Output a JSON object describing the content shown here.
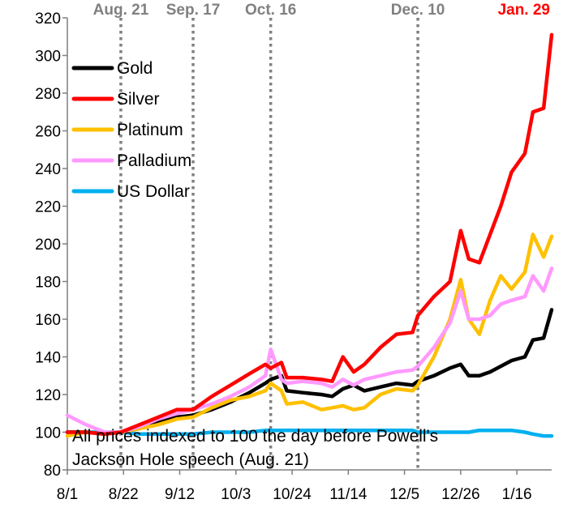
{
  "chart_data": {
    "type": "line",
    "title": "",
    "xlabel": "",
    "ylabel": "",
    "ylim": [
      80,
      320
    ],
    "yticks": [
      80,
      100,
      120,
      140,
      160,
      180,
      200,
      220,
      240,
      260,
      280,
      300,
      320
    ],
    "xlim": [
      "2025-08-01",
      "2026-01-29"
    ],
    "xticks": [
      {
        "date": "2025-08-01",
        "label": "8/1"
      },
      {
        "date": "2025-08-22",
        "label": "8/22"
      },
      {
        "date": "2025-09-12",
        "label": "9/12"
      },
      {
        "date": "2025-10-03",
        "label": "10/3"
      },
      {
        "date": "2025-10-24",
        "label": "10/24"
      },
      {
        "date": "2025-11-14",
        "label": "11/14"
      },
      {
        "date": "2025-12-05",
        "label": "12/5"
      },
      {
        "date": "2025-12-26",
        "label": "12/26"
      },
      {
        "date": "2026-01-16",
        "label": "1/16"
      }
    ],
    "grid": false,
    "legend_position": "top-left",
    "event_lines": [
      {
        "date": "2025-08-21",
        "label": "Aug. 21",
        "color": "#808080",
        "show_line": true
      },
      {
        "date": "2025-09-17",
        "label": "Sep. 17",
        "color": "#808080",
        "show_line": true
      },
      {
        "date": "2025-10-16",
        "label": "Oct. 16",
        "color": "#808080",
        "show_line": true
      },
      {
        "date": "2025-12-10",
        "label": "Dec. 10",
        "color": "#808080",
        "show_line": true
      },
      {
        "date": "2026-01-29",
        "label": "Jan. 29",
        "color": "#ff0000",
        "show_line": false
      }
    ],
    "annotation": {
      "lines": [
        "All prices indexed to 100 the day before Powell's",
        "Jackson Hole speech (Aug. 21)"
      ]
    },
    "series": [
      {
        "name": "Gold",
        "color": "#000000",
        "points": [
          [
            "2025-08-01",
            100
          ],
          [
            "2025-08-08",
            100
          ],
          [
            "2025-08-15",
            99
          ],
          [
            "2025-08-21",
            100
          ],
          [
            "2025-08-28",
            102
          ],
          [
            "2025-09-04",
            106
          ],
          [
            "2025-09-11",
            108
          ],
          [
            "2025-09-17",
            109
          ],
          [
            "2025-09-24",
            112
          ],
          [
            "2025-10-01",
            116
          ],
          [
            "2025-10-08",
            121
          ],
          [
            "2025-10-14",
            126
          ],
          [
            "2025-10-16",
            128
          ],
          [
            "2025-10-20",
            130
          ],
          [
            "2025-10-22",
            122
          ],
          [
            "2025-10-28",
            121
          ],
          [
            "2025-11-04",
            120
          ],
          [
            "2025-11-08",
            119
          ],
          [
            "2025-11-12",
            123
          ],
          [
            "2025-11-16",
            125
          ],
          [
            "2025-11-20",
            122
          ],
          [
            "2025-11-26",
            124
          ],
          [
            "2025-12-02",
            126
          ],
          [
            "2025-12-08",
            125
          ],
          [
            "2025-12-10",
            127
          ],
          [
            "2025-12-16",
            130
          ],
          [
            "2025-12-22",
            134
          ],
          [
            "2025-12-26",
            136
          ],
          [
            "2025-12-29",
            130
          ],
          [
            "2026-01-02",
            130
          ],
          [
            "2026-01-06",
            132
          ],
          [
            "2026-01-10",
            135
          ],
          [
            "2026-01-14",
            138
          ],
          [
            "2026-01-19",
            140
          ],
          [
            "2026-01-22",
            149
          ],
          [
            "2026-01-26",
            150
          ],
          [
            "2026-01-29",
            165
          ]
        ]
      },
      {
        "name": "Silver",
        "color": "#ff0000",
        "points": [
          [
            "2025-08-01",
            100
          ],
          [
            "2025-08-08",
            100
          ],
          [
            "2025-08-15",
            99
          ],
          [
            "2025-08-21",
            100
          ],
          [
            "2025-08-28",
            104
          ],
          [
            "2025-09-04",
            108
          ],
          [
            "2025-09-11",
            112
          ],
          [
            "2025-09-17",
            112
          ],
          [
            "2025-09-24",
            119
          ],
          [
            "2025-10-01",
            125
          ],
          [
            "2025-10-08",
            131
          ],
          [
            "2025-10-14",
            136
          ],
          [
            "2025-10-16",
            134
          ],
          [
            "2025-10-20",
            137
          ],
          [
            "2025-10-22",
            129
          ],
          [
            "2025-10-28",
            129
          ],
          [
            "2025-11-04",
            128
          ],
          [
            "2025-11-08",
            127
          ],
          [
            "2025-11-12",
            140
          ],
          [
            "2025-11-16",
            132
          ],
          [
            "2025-11-20",
            136
          ],
          [
            "2025-11-26",
            145
          ],
          [
            "2025-12-02",
            152
          ],
          [
            "2025-12-08",
            153
          ],
          [
            "2025-12-10",
            162
          ],
          [
            "2025-12-16",
            172
          ],
          [
            "2025-12-22",
            180
          ],
          [
            "2025-12-26",
            207
          ],
          [
            "2025-12-29",
            192
          ],
          [
            "2026-01-02",
            190
          ],
          [
            "2026-01-06",
            205
          ],
          [
            "2026-01-10",
            220
          ],
          [
            "2026-01-14",
            238
          ],
          [
            "2026-01-19",
            248
          ],
          [
            "2026-01-22",
            270
          ],
          [
            "2026-01-26",
            272
          ],
          [
            "2026-01-29",
            311
          ]
        ]
      },
      {
        "name": "Platinum",
        "color": "#ffc000",
        "points": [
          [
            "2025-08-01",
            98
          ],
          [
            "2025-08-08",
            100
          ],
          [
            "2025-08-15",
            99
          ],
          [
            "2025-08-21",
            100
          ],
          [
            "2025-08-28",
            102
          ],
          [
            "2025-09-04",
            104
          ],
          [
            "2025-09-11",
            107
          ],
          [
            "2025-09-17",
            108
          ],
          [
            "2025-09-24",
            113
          ],
          [
            "2025-10-01",
            117
          ],
          [
            "2025-10-08",
            119
          ],
          [
            "2025-10-14",
            122
          ],
          [
            "2025-10-16",
            126
          ],
          [
            "2025-10-20",
            122
          ],
          [
            "2025-10-22",
            115
          ],
          [
            "2025-10-28",
            116
          ],
          [
            "2025-11-04",
            112
          ],
          [
            "2025-11-08",
            113
          ],
          [
            "2025-11-12",
            114
          ],
          [
            "2025-11-16",
            112
          ],
          [
            "2025-11-20",
            113
          ],
          [
            "2025-11-26",
            120
          ],
          [
            "2025-12-02",
            123
          ],
          [
            "2025-12-08",
            122
          ],
          [
            "2025-12-10",
            125
          ],
          [
            "2025-12-16",
            140
          ],
          [
            "2025-12-22",
            160
          ],
          [
            "2025-12-26",
            181
          ],
          [
            "2025-12-29",
            160
          ],
          [
            "2026-01-02",
            152
          ],
          [
            "2026-01-06",
            170
          ],
          [
            "2026-01-10",
            183
          ],
          [
            "2026-01-14",
            176
          ],
          [
            "2026-01-19",
            185
          ],
          [
            "2026-01-22",
            205
          ],
          [
            "2026-01-26",
            193
          ],
          [
            "2026-01-29",
            204
          ]
        ]
      },
      {
        "name": "Palladium",
        "color": "#ff99ff",
        "points": [
          [
            "2025-08-01",
            109
          ],
          [
            "2025-08-08",
            104
          ],
          [
            "2025-08-15",
            100
          ],
          [
            "2025-08-21",
            100
          ],
          [
            "2025-08-28",
            103
          ],
          [
            "2025-09-04",
            107
          ],
          [
            "2025-09-11",
            110
          ],
          [
            "2025-09-17",
            112
          ],
          [
            "2025-09-24",
            115
          ],
          [
            "2025-10-01",
            119
          ],
          [
            "2025-10-08",
            124
          ],
          [
            "2025-10-14",
            130
          ],
          [
            "2025-10-16",
            144
          ],
          [
            "2025-10-20",
            128
          ],
          [
            "2025-10-22",
            126
          ],
          [
            "2025-10-28",
            127
          ],
          [
            "2025-11-04",
            126
          ],
          [
            "2025-11-08",
            124
          ],
          [
            "2025-11-12",
            128
          ],
          [
            "2025-11-16",
            125
          ],
          [
            "2025-11-20",
            128
          ],
          [
            "2025-11-26",
            130
          ],
          [
            "2025-12-02",
            132
          ],
          [
            "2025-12-08",
            133
          ],
          [
            "2025-12-10",
            135
          ],
          [
            "2025-12-16",
            145
          ],
          [
            "2025-12-22",
            158
          ],
          [
            "2025-12-26",
            175
          ],
          [
            "2025-12-29",
            160
          ],
          [
            "2026-01-02",
            160
          ],
          [
            "2026-01-06",
            162
          ],
          [
            "2026-01-10",
            168
          ],
          [
            "2026-01-14",
            170
          ],
          [
            "2026-01-19",
            172
          ],
          [
            "2026-01-22",
            183
          ],
          [
            "2026-01-26",
            175
          ],
          [
            "2026-01-29",
            187
          ]
        ]
      },
      {
        "name": "US Dollar",
        "color": "#00b0f0",
        "points": [
          [
            "2025-08-01",
            100
          ],
          [
            "2025-08-08",
            100
          ],
          [
            "2025-08-15",
            100
          ],
          [
            "2025-08-21",
            100
          ],
          [
            "2025-08-28",
            99
          ],
          [
            "2025-09-04",
            99
          ],
          [
            "2025-09-11",
            99
          ],
          [
            "2025-09-17",
            99
          ],
          [
            "2025-09-24",
            100
          ],
          [
            "2025-10-01",
            100
          ],
          [
            "2025-10-08",
            100
          ],
          [
            "2025-10-14",
            101
          ],
          [
            "2025-10-16",
            101
          ],
          [
            "2025-10-20",
            101
          ],
          [
            "2025-10-22",
            101
          ],
          [
            "2025-10-28",
            101
          ],
          [
            "2025-11-04",
            101
          ],
          [
            "2025-11-08",
            101
          ],
          [
            "2025-11-12",
            101
          ],
          [
            "2025-11-16",
            101
          ],
          [
            "2025-11-20",
            101
          ],
          [
            "2025-11-26",
            101
          ],
          [
            "2025-12-02",
            101
          ],
          [
            "2025-12-08",
            101
          ],
          [
            "2025-12-10",
            100
          ],
          [
            "2025-12-16",
            100
          ],
          [
            "2025-12-22",
            100
          ],
          [
            "2025-12-26",
            100
          ],
          [
            "2025-12-29",
            100
          ],
          [
            "2026-01-02",
            101
          ],
          [
            "2026-01-06",
            101
          ],
          [
            "2026-01-10",
            101
          ],
          [
            "2026-01-14",
            101
          ],
          [
            "2026-01-19",
            100
          ],
          [
            "2026-01-22",
            99
          ],
          [
            "2026-01-26",
            98
          ],
          [
            "2026-01-29",
            98
          ]
        ]
      }
    ]
  }
}
